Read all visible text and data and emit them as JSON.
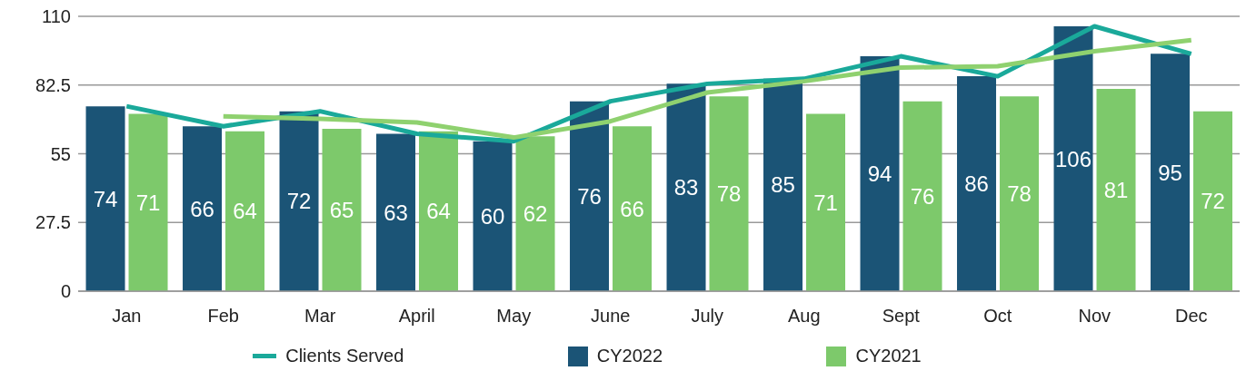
{
  "chart_data": {
    "type": "bar",
    "categories": [
      "Jan",
      "Feb",
      "Mar",
      "April",
      "May",
      "June",
      "July",
      "Aug",
      "Sept",
      "Oct",
      "Nov",
      "Dec"
    ],
    "series": [
      {
        "name": "Clients Served",
        "type": "line",
        "color": "#1aa99a",
        "values": [
          74,
          66,
          72,
          63,
          60,
          76,
          83,
          85,
          94,
          86,
          106,
          95
        ]
      },
      {
        "name": "CY2022",
        "color": "#1b5476",
        "values": [
          74,
          66,
          72,
          63,
          60,
          76,
          83,
          85,
          94,
          86,
          106,
          95
        ],
        "value_labels": [
          "74",
          "66",
          "72",
          "63",
          "60",
          "76",
          "83",
          "85",
          "94",
          "86",
          "106",
          "95"
        ]
      },
      {
        "name": "CY2021",
        "color": "#7dc96b",
        "values": [
          71,
          64,
          65,
          64,
          62,
          66,
          78,
          71,
          76,
          78,
          81,
          72
        ],
        "value_labels": [
          "71",
          "64",
          "65",
          "64",
          "62",
          "66",
          "78",
          "71",
          "76",
          "78",
          "81",
          "72"
        ]
      },
      {
        "type": "line",
        "color": "#8fd16f",
        "values": [
          null,
          70,
          69,
          67.5,
          61.5,
          68,
          79.5,
          84,
          89.5,
          90,
          96,
          100.5
        ]
      }
    ],
    "ylim": [
      0,
      110
    ],
    "yticks": [
      0,
      27.5,
      55,
      82.5,
      110
    ],
    "grid": "y",
    "legend": "bottom",
    "marker": "none",
    "line_style": "solid"
  }
}
